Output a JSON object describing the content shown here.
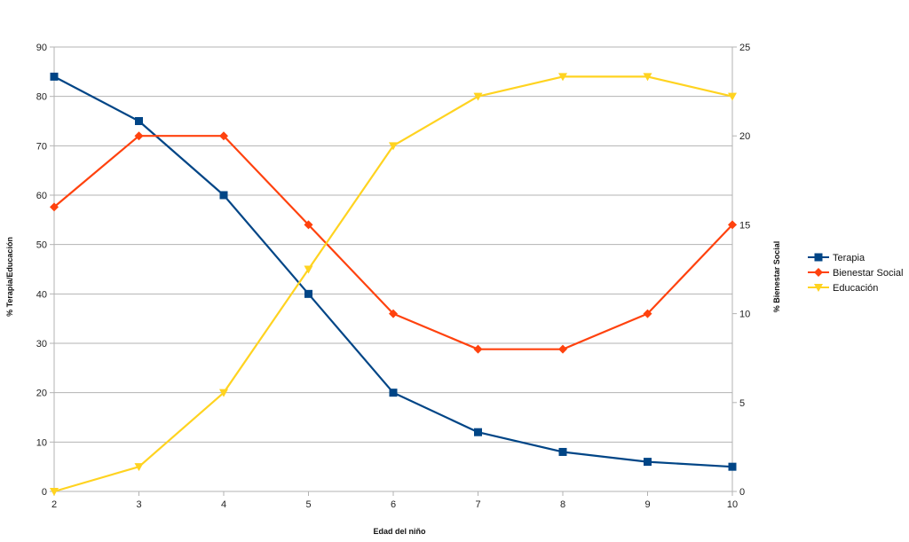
{
  "chart_data": {
    "type": "line",
    "title": "",
    "xlabel": "Edad del niño",
    "ylabel_left": "% Terapia/Educación",
    "ylabel_right": "% Bienestar Social",
    "x": [
      2,
      3,
      4,
      5,
      6,
      7,
      8,
      9,
      10
    ],
    "ylim_left": [
      0,
      90
    ],
    "yticks_left": [
      0,
      10,
      20,
      30,
      40,
      50,
      60,
      70,
      80,
      90
    ],
    "ylim_right": [
      0,
      25
    ],
    "yticks_right": [
      0,
      5,
      10,
      15,
      20,
      25
    ],
    "grid": true,
    "legend_position": "right",
    "series": [
      {
        "name": "Terapia",
        "axis": "left",
        "color": "#004586",
        "marker": "square",
        "values": [
          84,
          75,
          60,
          40,
          20,
          12,
          8,
          6,
          5
        ]
      },
      {
        "name": "Bienestar Social",
        "axis": "right",
        "color": "#ff420e",
        "marker": "diamond",
        "values": [
          16,
          20,
          20,
          15,
          10,
          8,
          8,
          10,
          15
        ]
      },
      {
        "name": "Educación",
        "axis": "left",
        "color": "#ffd320",
        "marker": "triangle-down",
        "values": [
          0,
          5,
          20,
          45,
          70,
          80,
          84,
          84,
          80
        ]
      }
    ]
  }
}
